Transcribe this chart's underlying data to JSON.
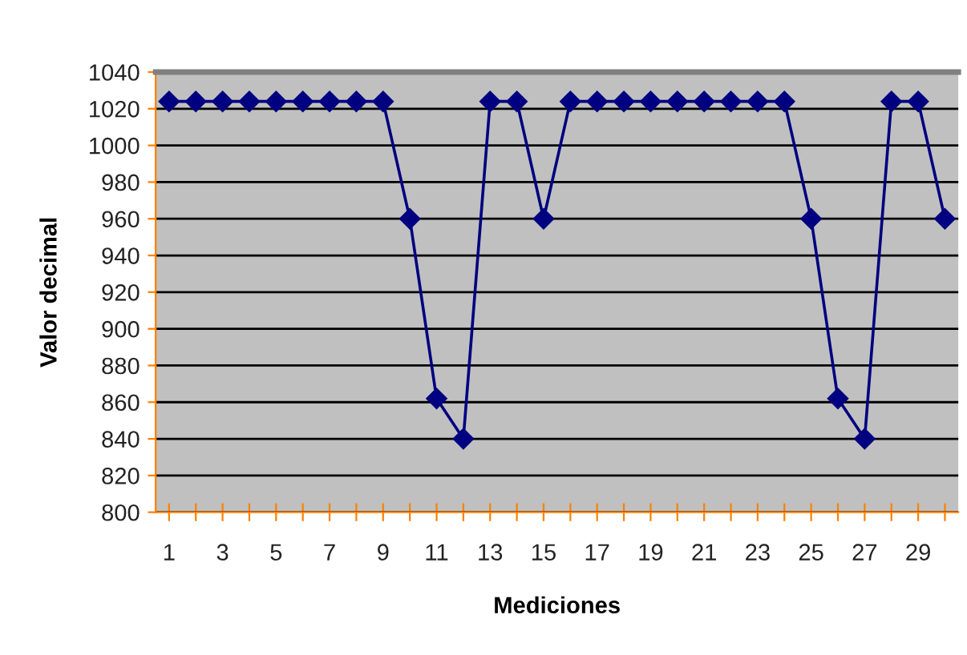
{
  "chart_data": {
    "type": "line",
    "xlabel": "Mediciones",
    "ylabel": "Valor decimal",
    "categories": [
      "1",
      null,
      "3",
      null,
      "5",
      null,
      "7",
      null,
      "9",
      null,
      "11",
      null,
      "13",
      null,
      "15",
      null,
      "17",
      null,
      "19",
      null,
      "21",
      null,
      "23",
      null,
      "25",
      null,
      "27",
      null,
      "29",
      null
    ],
    "series": [
      {
        "color": "#000080",
        "values": [
          1024,
          1024,
          1024,
          1024,
          1024,
          1024,
          1024,
          1024,
          1024,
          960,
          862,
          840,
          1024,
          1024,
          960,
          1024,
          1024,
          1024,
          1024,
          1024,
          1024,
          1024,
          1024,
          1024,
          960,
          862,
          840,
          1024,
          1024,
          960
        ]
      }
    ],
    "ylim": [
      800,
      1040
    ],
    "yticks": [
      800,
      820,
      840,
      860,
      880,
      900,
      920,
      940,
      960,
      980,
      1000,
      1020,
      1040
    ],
    "grid": "y",
    "marker": "diamond",
    "line_style": "solid"
  }
}
